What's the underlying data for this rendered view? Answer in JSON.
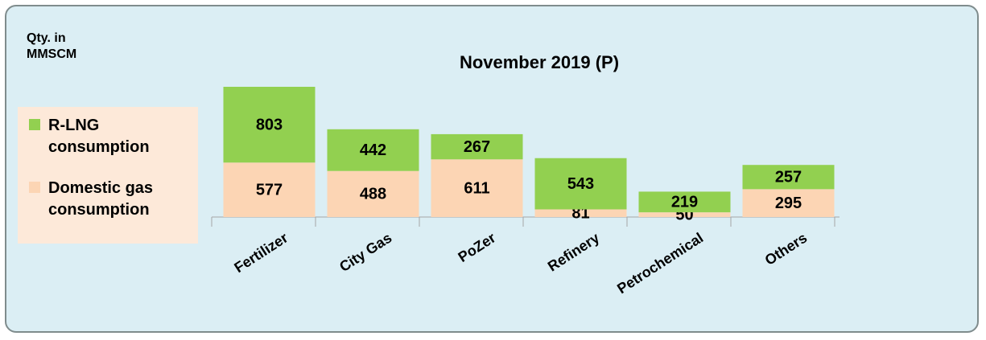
{
  "chart_data": {
    "type": "stacked_bar",
    "title": "November 2019 (P)",
    "y_label": "Qty. in MMSCM",
    "categories": [
      "Fertilizer",
      "City Gas",
      "PoZer",
      "Refinery",
      "Petrochemical",
      "Others"
    ],
    "series": [
      {
        "name": "Domestic gas consumption",
        "color": "#fcd5b4",
        "values": [
          577,
          488,
          611,
          81,
          50,
          295
        ]
      },
      {
        "name": "R-LNG consumption",
        "color": "#92d050",
        "values": [
          803,
          442,
          267,
          543,
          219,
          257
        ]
      }
    ]
  }
}
